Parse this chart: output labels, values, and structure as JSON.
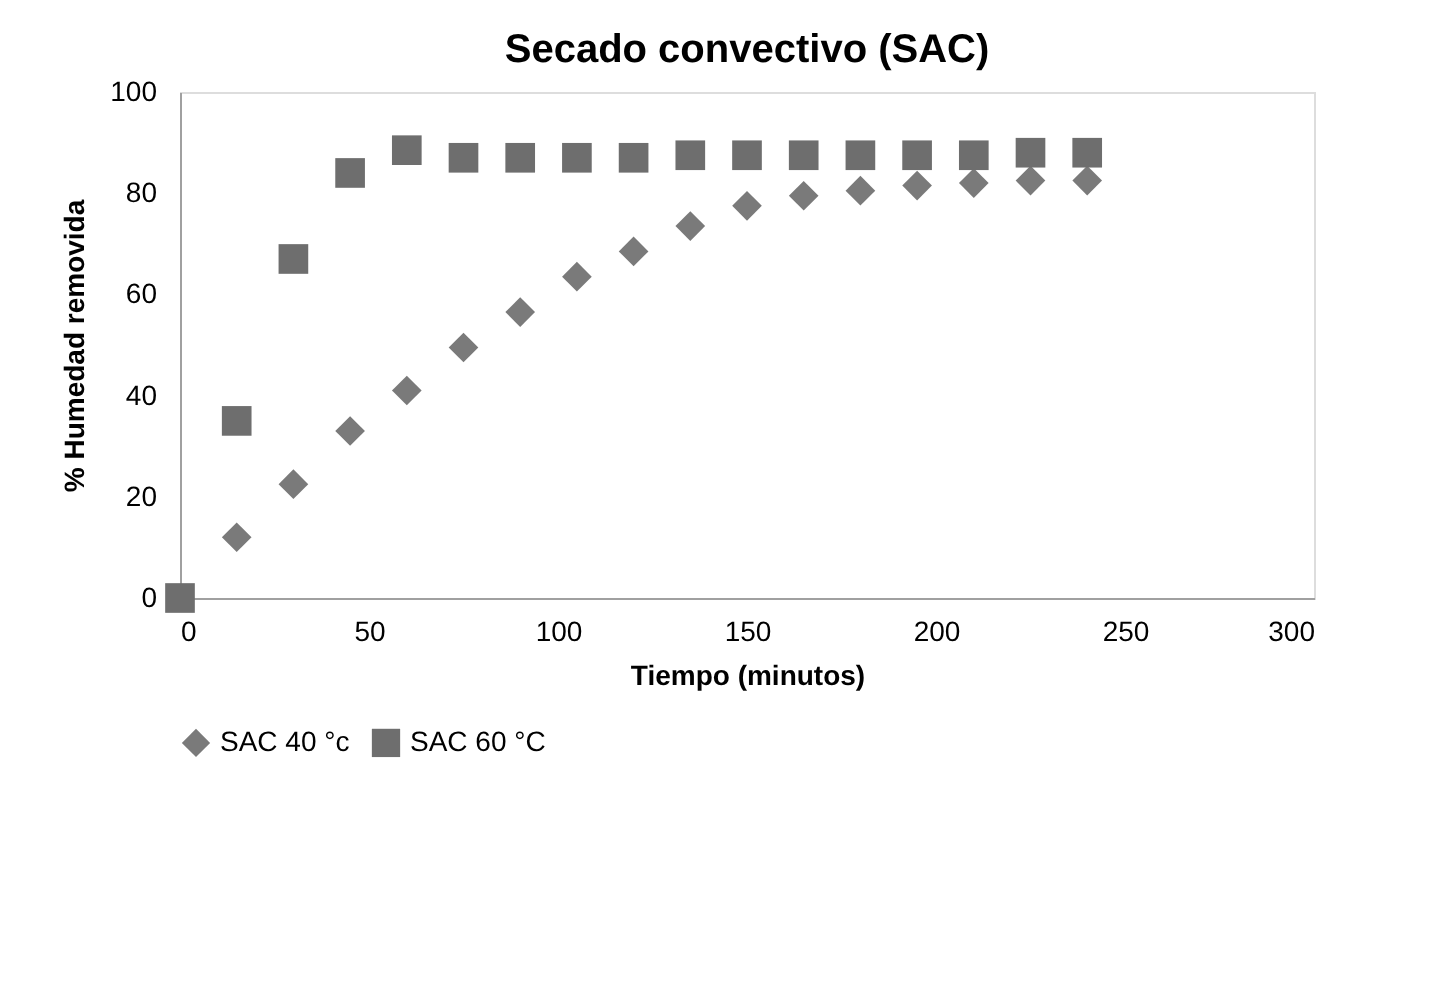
{
  "chart_data": {
    "type": "scatter",
    "title": "Secado convectivo (SAC)",
    "xlabel": "Tiempo  (minutos)",
    "ylabel": "%  Humedad removida",
    "x": [
      0,
      15,
      30,
      45,
      60,
      75,
      90,
      105,
      120,
      135,
      150,
      165,
      180,
      195,
      210,
      225,
      240
    ],
    "series": [
      {
        "name": "SAC 40 °c",
        "color": "#7a7a7a",
        "marker": "diamond",
        "values": [
          null,
          12,
          22.5,
          33,
          41,
          49.5,
          56.5,
          63.5,
          68.5,
          73.5,
          77.5,
          79.5,
          80.5,
          81.5,
          82,
          82.5,
          82.5
        ]
      },
      {
        "name": "SAC 60 °C",
        "color": "#6e6e6e",
        "marker": "square",
        "values": [
          0,
          35,
          67,
          84,
          88.5,
          87,
          87,
          87,
          87,
          87.5,
          87.5,
          87.5,
          87.5,
          87.5,
          87.5,
          88,
          88
        ]
      }
    ],
    "xlim": [
      0,
      300
    ],
    "xticks": [
      0,
      50,
      100,
      150,
      200,
      250,
      300
    ],
    "ylim": [
      0,
      100
    ],
    "yticks": [
      0,
      20,
      40,
      60,
      80,
      100
    ],
    "grid": false,
    "legend": "bottom"
  }
}
